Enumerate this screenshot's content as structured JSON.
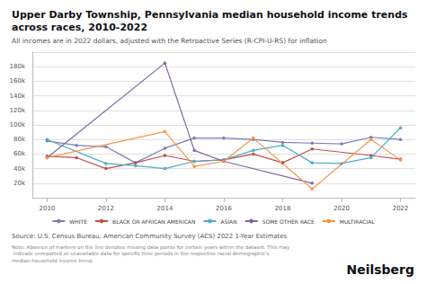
{
  "chart_data": {
    "type": "line",
    "title": "Upper Darby Township, Pennsylvania median household income trends\nacross races, 2010-2022",
    "subtitle": "All incomes are in 2022 dollars, adjusted with the Retroactive Series (R-CPI-U-RS) for inflation",
    "source": "Source: U.S. Census Bureau, American Community Survey (ACS) 2022 1-Year Estimates",
    "note": "Note: Absence of markers on the line denotes missing data points for certain years within the dataset. This may indicate unreported or unavailable data for specific time periods in the respective racial demographic's median household income trend.",
    "annotations": [
      "Neilsberg"
    ],
    "x": [
      2010,
      2011,
      2012,
      2013,
      2014,
      2015,
      2016,
      2017,
      2018,
      2019,
      2020,
      2021,
      2022
    ],
    "series": [
      {
        "name": "WHITE",
        "color": "#7b7fb5",
        "values": [
          78000,
          72000,
          70000,
          48000,
          68000,
          82000,
          82000,
          80000,
          76000,
          75000,
          74000,
          83000,
          80000
        ]
      },
      {
        "name": "BLACK OR AFRICAN AMERICAN",
        "color": "#c0504d",
        "values": [
          57000,
          55000,
          40000,
          48000,
          58000,
          50000,
          52000,
          60000,
          48000,
          67000,
          null,
          58000,
          53000
        ]
      },
      {
        "name": "ASIAN",
        "color": "#4bacc6",
        "values": [
          80000,
          null,
          47000,
          44000,
          40000,
          50000,
          52000,
          65000,
          72000,
          48000,
          47000,
          55000,
          96000
        ]
      },
      {
        "name": "SOME OTHER RACE",
        "color": "#8064a2",
        "values": [
          55000,
          null,
          null,
          null,
          185000,
          65000,
          50000,
          null,
          null,
          20000,
          null,
          null,
          null
        ]
      },
      {
        "name": "MULTIRACIAL",
        "color": "#f79646",
        "values": [
          55000,
          null,
          null,
          null,
          91000,
          43000,
          50000,
          82000,
          null,
          12000,
          null,
          80000,
          52000
        ]
      }
    ],
    "xlim": [
      2009.5,
      2022.5
    ],
    "xticks": [
      2010,
      2012,
      2014,
      2016,
      2018,
      2020,
      2022
    ],
    "ylim": [
      0,
      200000
    ],
    "yticks": [
      {
        "value": 20000,
        "label": "20k"
      },
      {
        "value": 40000,
        "label": "40k"
      },
      {
        "value": 60000,
        "label": "60k"
      },
      {
        "value": 80000,
        "label": "80k"
      },
      {
        "value": 100000,
        "label": "100k"
      },
      {
        "value": 120000,
        "label": "120k"
      },
      {
        "value": 140000,
        "label": "140k"
      },
      {
        "value": 160000,
        "label": "160k"
      },
      {
        "value": 180000,
        "label": "180k"
      }
    ],
    "grid": true,
    "legend": "bottom",
    "marker": "circle"
  }
}
